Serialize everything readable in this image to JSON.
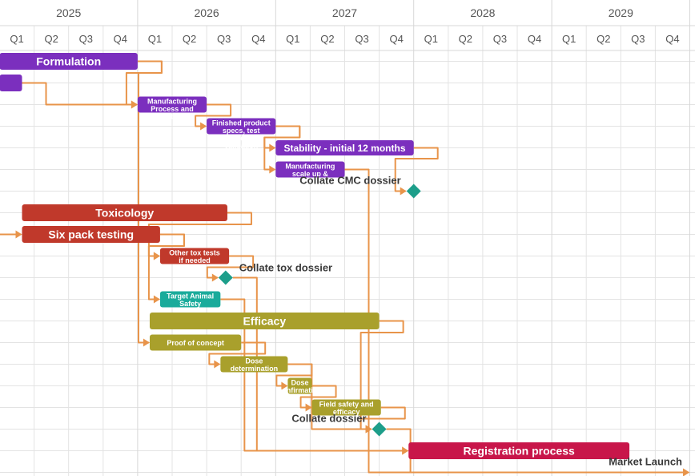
{
  "chart_data": {
    "type": "gantt",
    "years": [
      "2025",
      "2026",
      "2027",
      "2028",
      "2029"
    ],
    "quarters": [
      "Q1",
      "Q2",
      "Q3",
      "Q4"
    ],
    "colors": {
      "formulation": "#7b2fbe",
      "toxicology": "#c0392b",
      "safety": "#1aab9b",
      "efficacy": "#a9a02c",
      "registration": "#c8164a",
      "milestone": "#1d9e8a",
      "connector": "#e8944a",
      "grid": "#e3e3e3"
    },
    "tasks": [
      {
        "id": "formulation",
        "label": "Formulation",
        "start": 0.0,
        "end": 4.0,
        "row": 0,
        "color": "formulation",
        "size": "big"
      },
      {
        "id": "formulation_pre",
        "label": "",
        "start": 0.0,
        "end": 0.65,
        "row": 1,
        "color": "formulation",
        "size": "big"
      },
      {
        "id": "mfg_process",
        "label": "Manufacturing Process and controls",
        "start": 4.0,
        "end": 6.0,
        "row": 2,
        "color": "formulation",
        "size": "small"
      },
      {
        "id": "specs",
        "label": "Finished product specs, test methods and validation",
        "start": 6.0,
        "end": 8.0,
        "row": 3,
        "color": "formulation",
        "size": "small"
      },
      {
        "id": "stability",
        "label": "Stability - initial 12 months",
        "start": 8.0,
        "end": 12.0,
        "row": 4,
        "color": "formulation",
        "size": "medium"
      },
      {
        "id": "mfg_scaleup",
        "label": "Manufacturing scale up & validation",
        "start": 8.0,
        "end": 10.0,
        "row": 5,
        "color": "formulation",
        "size": "small"
      },
      {
        "id": "toxicology",
        "label": "Toxicology",
        "start": 0.65,
        "end": 6.6,
        "row": 7,
        "color": "toxicology",
        "size": "big"
      },
      {
        "id": "sixpack",
        "label": "Six pack testing",
        "start": 0.65,
        "end": 4.65,
        "row": 8,
        "color": "toxicology",
        "size": "big"
      },
      {
        "id": "other_tox",
        "label": "Other tox tests if needed",
        "start": 4.65,
        "end": 6.65,
        "row": 9,
        "color": "toxicology",
        "size": "small"
      },
      {
        "id": "tas",
        "label": "Target Animal Safety",
        "start": 4.65,
        "end": 6.4,
        "row": 11,
        "color": "safety",
        "size": "small"
      },
      {
        "id": "efficacy",
        "label": "Efficacy",
        "start": 4.35,
        "end": 11.0,
        "row": 12,
        "color": "efficacy",
        "size": "big"
      },
      {
        "id": "poc",
        "label": "Proof of concept",
        "start": 4.35,
        "end": 7.0,
        "row": 13,
        "color": "efficacy",
        "size": "small"
      },
      {
        "id": "dose_det",
        "label": "Dose determination",
        "start": 6.4,
        "end": 8.35,
        "row": 14,
        "color": "efficacy",
        "size": "small"
      },
      {
        "id": "dose_conf",
        "label": "Dose confirmation",
        "start": 8.35,
        "end": 9.05,
        "row": 15,
        "color": "efficacy",
        "size": "small"
      },
      {
        "id": "field",
        "label": "Field safety and efficacy",
        "start": 9.05,
        "end": 11.05,
        "row": 16,
        "color": "efficacy",
        "size": "small"
      },
      {
        "id": "registration",
        "label": "Registration process",
        "start": 11.85,
        "end": 18.25,
        "row": 18,
        "color": "registration",
        "size": "big"
      }
    ],
    "milestones": [
      {
        "id": "cmc",
        "label": "Collate CMC dossier",
        "at": 12.0,
        "row": 6,
        "label_side": "left"
      },
      {
        "id": "tox_dossier",
        "label": "Collate tox dossier",
        "at": 6.55,
        "row": 10,
        "label_side": "right"
      },
      {
        "id": "eff_dossier",
        "label": "Collate dossier",
        "at": 11.0,
        "row": 17,
        "label_side": "left"
      },
      {
        "id": "launch",
        "label": "Market Launch",
        "at": 20.2,
        "row": 19,
        "label_side": "left"
      }
    ],
    "dependencies": [
      {
        "from": "formulation",
        "to": "mfg_process"
      },
      {
        "from": "formulation_pre",
        "to": "mfg_process"
      },
      {
        "from": "mfg_process",
        "to": "specs"
      },
      {
        "from": "specs",
        "to": "stability"
      },
      {
        "from": "specs",
        "to": "mfg_scaleup"
      },
      {
        "from": "stability",
        "to": "cmc"
      },
      {
        "from": "toxicology",
        "to": "other_tox"
      },
      {
        "from": "sixpack",
        "to": "other_tox"
      },
      {
        "from": "sixpack",
        "to": "tas"
      },
      {
        "from": "other_tox",
        "to": "tox_dossier"
      },
      {
        "from": "formulation",
        "to": "poc"
      },
      {
        "from": "poc",
        "to": "dose_det"
      },
      {
        "from": "dose_det",
        "to": "dose_conf"
      },
      {
        "from": "dose_conf",
        "to": "field"
      },
      {
        "from": "dose_det",
        "to": "eff_dossier"
      },
      {
        "from": "field",
        "to": "eff_dossier"
      },
      {
        "from": "efficacy",
        "to": "eff_dossier"
      },
      {
        "from": "tas",
        "to": "registration"
      },
      {
        "from": "tox_dossier",
        "to": "registration"
      },
      {
        "from": "mfg_scaleup",
        "to": "launch"
      },
      {
        "from": "eff_dossier",
        "to": "launch"
      }
    ],
    "incoming_arrow_rows": [
      8
    ]
  }
}
